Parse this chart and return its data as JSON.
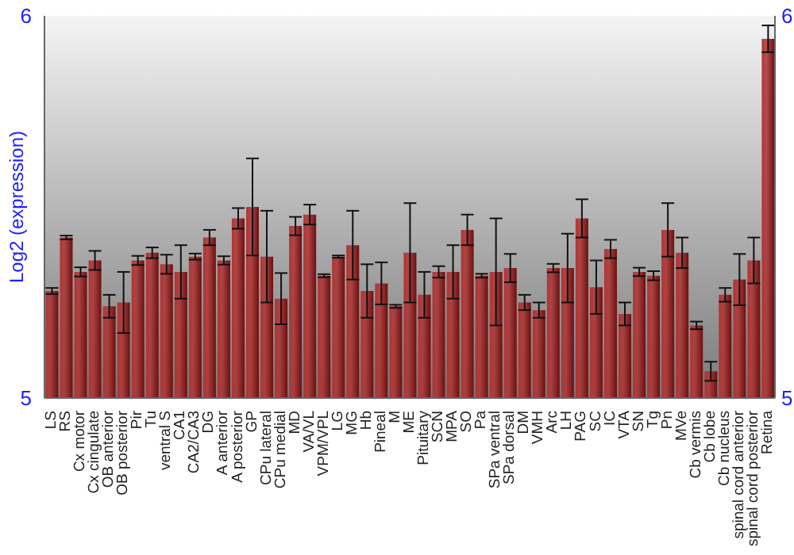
{
  "chart_data": {
    "type": "bar",
    "ylabel": "Log2 (expression)",
    "categories": [
      "LS",
      "RS",
      "Cx motor",
      "Cx cingulate",
      "OB anterior",
      "OB posterior",
      "Pir",
      "Tu",
      "ventral S",
      "CA1",
      "CA2/CA3",
      "DG",
      "A anterior",
      "A posterior",
      "GP",
      "CPu lateral",
      "CPu medial",
      "MD",
      "VA/VL",
      "VPM/VPL",
      "LG",
      "MG",
      "Hb",
      "Pineal",
      "M",
      "ME",
      "Pituitary",
      "SCN",
      "MPA",
      "SO",
      "Pa",
      "SPa ventral",
      "SPa dorsal",
      "DM",
      "VMH",
      "Arc",
      "LH",
      "PAG",
      "SC",
      "IC",
      "VTA",
      "SN",
      "Tg",
      "Pn",
      "MVe",
      "Cb vermis",
      "Cb lobe",
      "Cb nucleus",
      "spinal cord anterior",
      "spinal cord posterior",
      "Retina"
    ],
    "values": [
      5.28,
      5.42,
      5.33,
      5.36,
      5.24,
      5.25,
      5.36,
      5.38,
      5.35,
      5.33,
      5.37,
      5.42,
      5.36,
      5.47,
      5.5,
      5.37,
      5.26,
      5.45,
      5.48,
      5.32,
      5.37,
      5.4,
      5.28,
      5.3,
      5.24,
      5.38,
      5.27,
      5.33,
      5.33,
      5.44,
      5.32,
      5.33,
      5.34,
      5.25,
      5.23,
      5.34,
      5.34,
      5.47,
      5.29,
      5.39,
      5.22,
      5.33,
      5.32,
      5.44,
      5.38,
      5.19,
      5.07,
      5.27,
      5.31,
      5.36,
      5.94
    ],
    "errors": [
      0.008,
      0.005,
      0.012,
      0.025,
      0.03,
      0.08,
      0.012,
      0.014,
      0.025,
      0.07,
      0.008,
      0.02,
      0.011,
      0.027,
      0.127,
      0.12,
      0.067,
      0.024,
      0.026,
      0.004,
      0.003,
      0.09,
      0.07,
      0.055,
      0.004,
      0.13,
      0.06,
      0.015,
      0.07,
      0.04,
      0.005,
      0.14,
      0.037,
      0.02,
      0.02,
      0.011,
      0.09,
      0.05,
      0.07,
      0.024,
      0.03,
      0.011,
      0.012,
      0.07,
      0.04,
      0.01,
      0.025,
      0.018,
      0.067,
      0.06,
      0.035
    ],
    "color": "#b03434",
    "ylim": [
      5,
      6
    ],
    "yticks": [
      5,
      6
    ],
    "y2lim": [
      5,
      6
    ],
    "y2ticks": [
      5,
      6
    ],
    "grid": false
  }
}
